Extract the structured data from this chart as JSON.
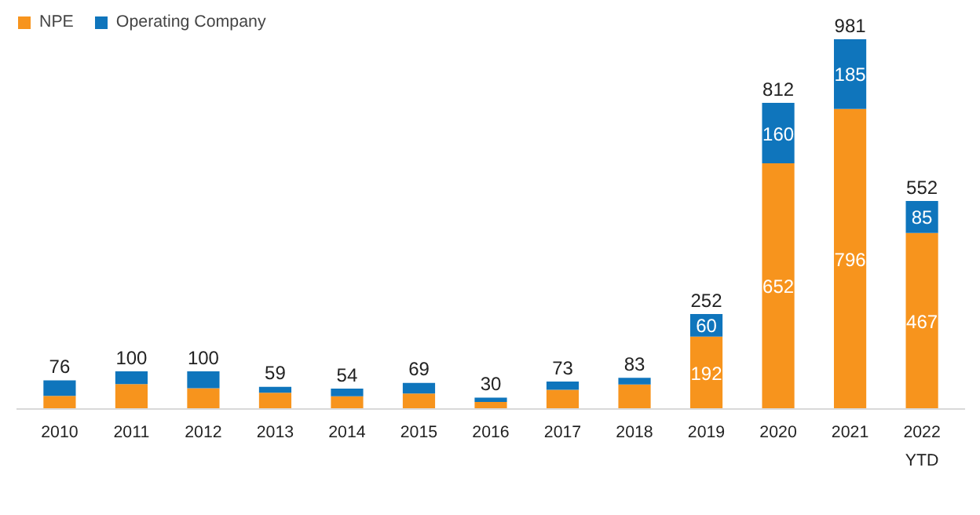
{
  "chart_data": {
    "type": "bar",
    "stacked": true,
    "legend": "top left",
    "grid": false,
    "categories": [
      "2010",
      "2011",
      "2012",
      "2013",
      "2014",
      "2015",
      "2016",
      "2017",
      "2018",
      "2019",
      "2020",
      "2021",
      "2022\nYTD"
    ],
    "series": [
      {
        "name": "NPE",
        "color": "#f7941d",
        "values": [
          35,
          66,
          55,
          43,
          34,
          41,
          19,
          51,
          65,
          192,
          652,
          796,
          467
        ],
        "value_labels": [
          null,
          null,
          null,
          null,
          null,
          null,
          null,
          null,
          null,
          "192",
          "652",
          "796",
          "467"
        ]
      },
      {
        "name": "Operating Company",
        "color": "#0f75bc",
        "values": [
          41,
          34,
          45,
          16,
          20,
          28,
          11,
          22,
          18,
          60,
          160,
          185,
          85
        ],
        "value_labels": [
          null,
          null,
          null,
          null,
          null,
          null,
          null,
          null,
          null,
          "60",
          "160",
          "185",
          "85"
        ]
      }
    ],
    "totals": [
      "76",
      "100",
      "100",
      "59",
      "54",
      "69",
      "30",
      "73",
      "83",
      "252",
      "812",
      "981",
      "552"
    ]
  }
}
